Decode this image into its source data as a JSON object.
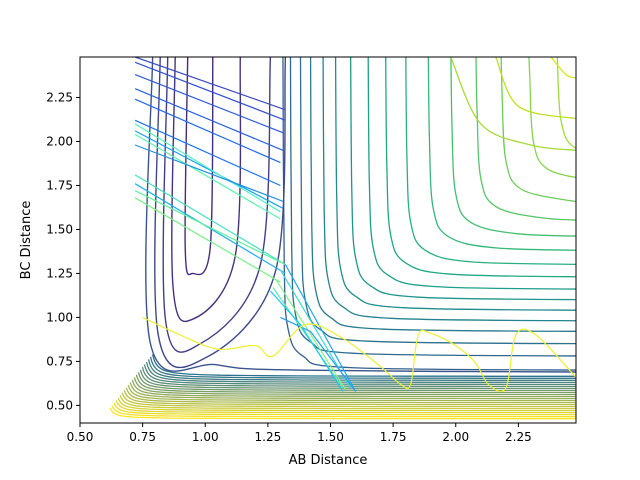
{
  "chart_data": {
    "type": "line",
    "title": "",
    "xlabel": "AB Distance",
    "ylabel": "BC Distance",
    "xlim": [
      0.5,
      2.48
    ],
    "ylim": [
      0.4,
      2.48
    ],
    "xticks": [
      0.5,
      0.75,
      1.0,
      1.25,
      1.5,
      1.75,
      2.0,
      2.25
    ],
    "xtick_labels": [
      "0.50",
      "0.75",
      "1.00",
      "1.25",
      "1.50",
      "1.75",
      "2.00",
      "2.25"
    ],
    "yticks": [
      0.5,
      0.75,
      1.0,
      1.25,
      1.5,
      1.75,
      2.0,
      2.25
    ],
    "ytick_labels": [
      "0.50",
      "0.75",
      "1.00",
      "1.25",
      "1.50",
      "1.75",
      "2.00",
      "2.25"
    ],
    "grid": false,
    "legend": false,
    "contours": {
      "description_colormap": "viridis",
      "well_levels": [
        {
          "x": [
            0.93,
            0.92,
            0.95,
            1.02,
            1.03
          ],
          "y": [
            2.48,
            1.4,
            1.25,
            1.4,
            2.48
          ],
          "color": "#472c7a"
        },
        {
          "x": [
            0.88,
            0.87,
            0.95,
            1.12,
            1.14
          ],
          "y": [
            2.48,
            1.2,
            0.99,
            1.35,
            2.48
          ],
          "color": "#46337f"
        },
        {
          "x": [
            0.85,
            0.84,
            0.98,
            1.22,
            1.26
          ],
          "y": [
            2.48,
            1.0,
            0.85,
            1.3,
            2.48
          ],
          "color": "#433e85"
        },
        {
          "x": [
            0.82,
            0.81,
            1.0,
            1.28,
            1.32
          ],
          "y": [
            2.48,
            0.92,
            0.77,
            1.26,
            2.48
          ],
          "color": "#3e4989"
        },
        {
          "x": [
            0.79,
            0.78,
            1.05,
            1.4,
            2.48
          ],
          "y": [
            2.48,
            0.86,
            0.73,
            0.7,
            0.69
          ],
          "color": "#39558c"
        }
      ],
      "valley_levels": [
        {
          "corner_x": 1.33,
          "corner_y": 0.72,
          "color": "#355f8d"
        },
        {
          "corner_x": 1.36,
          "corner_y": 0.8,
          "color": "#31688e"
        },
        {
          "corner_x": 1.4,
          "corner_y": 0.87,
          "color": "#2d718e"
        },
        {
          "corner_x": 1.44,
          "corner_y": 0.94,
          "color": "#297a8e"
        },
        {
          "corner_x": 1.49,
          "corner_y": 1.0,
          "color": "#25838e"
        },
        {
          "corner_x": 1.54,
          "corner_y": 1.06,
          "color": "#228c8d"
        },
        {
          "corner_x": 1.6,
          "corner_y": 1.12,
          "color": "#1f958b"
        },
        {
          "corner_x": 1.67,
          "corner_y": 1.18,
          "color": "#1f9e89"
        },
        {
          "corner_x": 1.74,
          "corner_y": 1.25,
          "color": "#22a785"
        },
        {
          "corner_x": 1.82,
          "corner_y": 1.32,
          "color": "#2ab07f"
        },
        {
          "corner_x": 1.91,
          "corner_y": 1.4,
          "color": "#35b779"
        },
        {
          "corner_x": 2.0,
          "corner_y": 1.48,
          "color": "#44bf70"
        },
        {
          "corner_x": 2.1,
          "corner_y": 1.57,
          "color": "#56c667"
        },
        {
          "corner_x": 2.2,
          "corner_y": 1.67,
          "color": "#6ccd5a"
        },
        {
          "corner_x": 2.31,
          "corner_y": 1.78,
          "color": "#85d44a"
        },
        {
          "corner_x": 2.42,
          "corner_y": 1.9,
          "color": "#a0da39"
        }
      ],
      "top_right_arcs": [
        {
          "x": [
            1.98,
            2.1,
            2.3,
            2.48
          ],
          "y": [
            2.48,
            2.1,
            1.98,
            1.95
          ],
          "color": "#a5db36"
        },
        {
          "x": [
            2.16,
            2.25,
            2.48
          ],
          "y": [
            2.48,
            2.2,
            2.13
          ],
          "color": "#c0df25"
        },
        {
          "x": [
            2.38,
            2.44,
            2.48
          ],
          "y": [
            2.48,
            2.38,
            2.36
          ],
          "color": "#dde318"
        }
      ],
      "wall_levels": 22,
      "wall_color_start": "#2c728e",
      "wall_color_end": "#fde725"
    },
    "trajectory_segments": [
      {
        "x": [
          0.72,
          1.32
        ],
        "y": [
          2.48,
          2.18
        ],
        "color": "#3b4cc0"
      },
      {
        "x": [
          0.72,
          1.32
        ],
        "y": [
          2.45,
          2.12
        ],
        "color": "#3550d0"
      },
      {
        "x": [
          0.72,
          1.31
        ],
        "y": [
          2.38,
          2.05
        ],
        "color": "#2f5ad8"
      },
      {
        "x": [
          0.72,
          1.31
        ],
        "y": [
          2.3,
          1.95
        ],
        "color": "#2a60e0"
      },
      {
        "x": [
          0.72,
          1.3
        ],
        "y": [
          2.24,
          1.88
        ],
        "color": "#1f68e8"
      },
      {
        "x": [
          0.72,
          1.3
        ],
        "y": [
          2.12,
          1.75
        ],
        "color": "#1a70f0"
      },
      {
        "x": [
          0.72,
          1.31
        ],
        "y": [
          2.06,
          1.62
        ],
        "color": "#18a0f0"
      },
      {
        "x": [
          0.72,
          1.3
        ],
        "y": [
          2.1,
          1.6
        ],
        "color": "#4ff0c8"
      },
      {
        "x": [
          0.72,
          1.3
        ],
        "y": [
          2.04,
          1.56
        ],
        "color": "#5cf5b0"
      },
      {
        "x": [
          0.72,
          1.31
        ],
        "y": [
          1.98,
          1.66
        ],
        "color": "#2090e0"
      },
      {
        "x": [
          0.72,
          1.32
        ],
        "y": [
          1.81,
          1.3
        ],
        "color": "#40e0c0"
      },
      {
        "x": [
          0.72,
          1.32
        ],
        "y": [
          1.76,
          1.25
        ],
        "color": "#20b0f0"
      },
      {
        "x": [
          0.72,
          1.32
        ],
        "y": [
          1.72,
          1.3
        ],
        "color": "#60f0a0"
      },
      {
        "x": [
          0.72,
          1.3
        ],
        "y": [
          1.68,
          1.2
        ],
        "color": "#78f088"
      },
      {
        "x": [
          1.32,
          1.6
        ],
        "y": [
          1.3,
          0.58
        ],
        "color": "#20a8f0"
      },
      {
        "x": [
          1.3,
          1.58
        ],
        "y": [
          1.27,
          0.6
        ],
        "color": "#40d8d0"
      },
      {
        "x": [
          1.28,
          1.56
        ],
        "y": [
          1.22,
          0.59
        ],
        "color": "#88f080"
      },
      {
        "x": [
          1.27,
          1.55
        ],
        "y": [
          1.17,
          0.6
        ],
        "color": "#60e8b0"
      },
      {
        "x": [
          1.3,
          1.42,
          1.6
        ],
        "y": [
          1.0,
          0.92,
          0.58
        ],
        "color": "#20a0f8"
      },
      {
        "x": [
          1.26,
          1.38,
          1.55
        ],
        "y": [
          1.15,
          0.96,
          0.58
        ],
        "color": "#18c8f0"
      }
    ],
    "yellow_trajectory": {
      "x": [
        0.75,
        0.9,
        1.05,
        1.2,
        1.27,
        1.4,
        1.55,
        1.7,
        1.78,
        1.82,
        1.85,
        1.9,
        2.0,
        2.08,
        2.13,
        2.2,
        2.24,
        2.32,
        2.48
      ],
      "y": [
        1.0,
        0.9,
        0.82,
        0.84,
        0.78,
        0.96,
        0.88,
        0.72,
        0.62,
        0.62,
        0.9,
        0.91,
        0.84,
        0.74,
        0.62,
        0.6,
        0.9,
        0.9,
        0.66
      ],
      "color": "#eef030"
    }
  }
}
